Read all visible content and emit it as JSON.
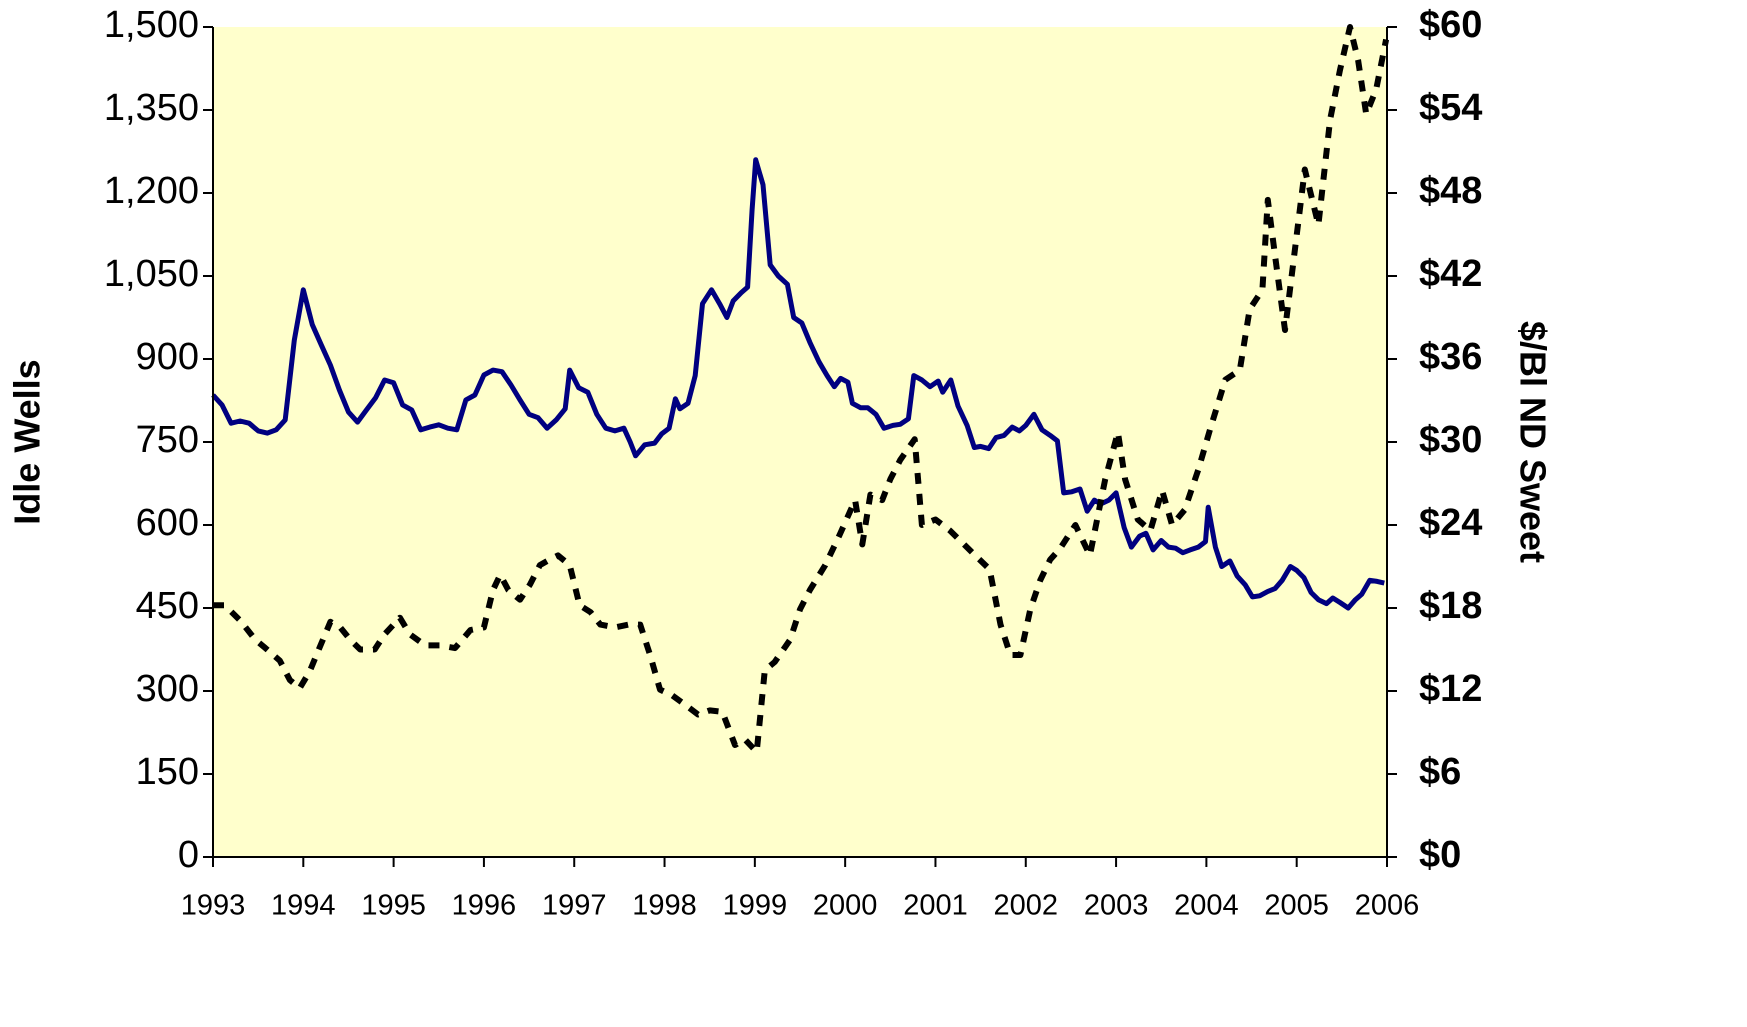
{
  "chart_data": {
    "type": "line",
    "ylabel": "Idle Wells",
    "y2label": "$/Bl ND Sweet",
    "background": "#ffffcc",
    "xlim": [
      1993,
      2006
    ],
    "xticks": [
      1993,
      1994,
      1995,
      1996,
      1997,
      1998,
      1999,
      2000,
      2001,
      2002,
      2003,
      2004,
      2005,
      2006
    ],
    "ylim": [
      0,
      1500
    ],
    "yticks": [
      0,
      150,
      300,
      450,
      600,
      750,
      900,
      {
        "value": 1050,
        "label": "1,050"
      },
      {
        "value": 1200,
        "label": "1,200"
      },
      {
        "value": 1350,
        "label": "1,350"
      },
      {
        "value": 1500,
        "label": "1,500"
      }
    ],
    "y2lim": [
      0,
      60
    ],
    "y2ticks": [
      {
        "value": 0,
        "label": "$0"
      },
      {
        "value": 6,
        "label": "$6"
      },
      {
        "value": 12,
        "label": "$12"
      },
      {
        "value": 18,
        "label": "$18"
      },
      {
        "value": 24,
        "label": "$24"
      },
      {
        "value": 30,
        "label": "$30"
      },
      {
        "value": 36,
        "label": "$36"
      },
      {
        "value": 42,
        "label": "$42"
      },
      {
        "value": 48,
        "label": "$48"
      },
      {
        "value": 54,
        "label": "$54"
      },
      {
        "value": 60,
        "label": "$60"
      }
    ],
    "series": [
      {
        "color": "#000080",
        "dash": false,
        "x": [
          1993.0,
          1993.1,
          1993.2,
          1993.3,
          1993.4,
          1993.5,
          1993.6,
          1993.7,
          1993.8,
          1993.9,
          1994.0,
          1994.1,
          1994.2,
          1994.3,
          1994.4,
          1994.5,
          1994.6,
          1994.7,
          1994.8,
          1994.9,
          1995.0,
          1995.1,
          1995.2,
          1995.3,
          1995.4,
          1995.5,
          1995.6,
          1995.7,
          1995.8,
          1995.9,
          1996.0,
          1996.1,
          1996.2,
          1996.3,
          1996.4,
          1996.5,
          1996.6,
          1996.7,
          1996.8,
          1996.9,
          1996.95,
          1997.05,
          1997.15,
          1997.25,
          1997.35,
          1997.45,
          1997.55,
          1997.62,
          1997.68,
          1997.78,
          1997.89,
          1997.97,
          1998.05,
          1998.12,
          1998.17,
          1998.26,
          1998.34,
          1998.42,
          1998.52,
          1998.61,
          1998.69,
          1998.76,
          1998.85,
          1998.92,
          1998.97,
          1999.01,
          1999.09,
          1999.17,
          1999.26,
          1999.36,
          1999.43,
          1999.52,
          1999.61,
          1999.71,
          1999.8,
          1999.88,
          1999.95,
          2000.03,
          2000.08,
          2000.17,
          2000.25,
          2000.34,
          2000.43,
          2000.53,
          2000.61,
          2000.7,
          2000.76,
          2000.85,
          2000.94,
          2001.03,
          2001.08,
          2001.17,
          2001.25,
          2001.35,
          2001.43,
          2001.5,
          2001.59,
          2001.67,
          2001.76,
          2001.85,
          2001.93,
          2002.0,
          2002.09,
          2002.18,
          2002.27,
          2002.35,
          2002.42,
          2002.51,
          2002.6,
          2002.68,
          2002.76,
          2002.83,
          2002.92,
          2003.0,
          2003.09,
          2003.17,
          2003.26,
          2003.33,
          2003.41,
          2003.5,
          2003.58,
          2003.66,
          2003.74,
          2003.82,
          2003.91,
          2003.99,
          2004.02,
          2004.1,
          2004.17,
          2004.26,
          2004.34,
          2004.43,
          2004.51,
          2004.59,
          2004.68,
          2004.76,
          2004.84,
          2004.93,
          2005.0,
          2005.08,
          2005.16,
          2005.24,
          2005.33,
          2005.4,
          2005.48,
          2005.57,
          2005.65,
          2005.72,
          2005.81,
          2005.89,
          2005.97
        ],
        "values": [
          835,
          817,
          784,
          788,
          784,
          770,
          766,
          772,
          790,
          934,
          1025,
          962,
          925,
          889,
          844,
          804,
          786,
          808,
          830,
          862,
          857,
          817,
          808,
          772,
          777,
          781,
          775,
          772,
          826,
          835,
          871,
          880,
          877,
          853,
          826,
          800,
          794,
          775,
          790,
          810,
          880,
          848,
          840,
          800,
          775,
          770,
          775,
          750,
          725,
          745,
          748,
          765,
          775,
          828,
          810,
          820,
          870,
          1000,
          1025,
          1000,
          975,
          1005,
          1020,
          1030,
          1170,
          1260,
          1215,
          1070,
          1050,
          1035,
          975,
          965,
          930,
          895,
          870,
          850,
          865,
          858,
          820,
          812,
          812,
          800,
          775,
          780,
          782,
          792,
          870,
          862,
          850,
          860,
          840,
          862,
          815,
          780,
          740,
          742,
          738,
          758,
          762,
          777,
          770,
          780,
          800,
          772,
          762,
          752,
          658,
          660,
          665,
          625,
          645,
          638,
          645,
          658,
          595,
          560,
          580,
          585,
          555,
          572,
          560,
          558,
          550,
          555,
          560,
          570,
          632,
          560,
          525,
          535,
          508,
          492,
          470,
          472,
          480,
          485,
          500,
          525,
          518,
          505,
          478,
          465,
          458,
          468,
          460,
          450,
          465,
          475,
          500,
          498,
          495
        ]
      },
      {
        "color": "#000000",
        "dash": true,
        "axis": "y2",
        "x": [
          1993.0,
          1993.13,
          1993.3,
          1993.47,
          1993.58,
          1993.74,
          1993.85,
          1993.96,
          1994.07,
          1994.19,
          1994.3,
          1994.41,
          1994.52,
          1994.63,
          1994.79,
          1994.9,
          1995.07,
          1995.18,
          1995.35,
          1995.51,
          1995.68,
          1995.85,
          1996.0,
          1996.1,
          1996.18,
          1996.27,
          1996.4,
          1996.51,
          1996.62,
          1996.73,
          1996.82,
          1996.95,
          1997.06,
          1997.18,
          1997.29,
          1997.45,
          1997.6,
          1997.73,
          1997.84,
          1997.95,
          1998.08,
          1998.23,
          1998.37,
          1998.5,
          1998.64,
          1998.78,
          1998.89,
          1999.02,
          1999.11,
          1999.22,
          1999.39,
          1999.5,
          1999.61,
          1999.78,
          1999.94,
          2000.11,
          2000.19,
          2000.28,
          2000.41,
          2000.5,
          2000.61,
          2000.77,
          2000.85,
          2001.0,
          2001.16,
          2001.27,
          2001.44,
          2001.6,
          2001.72,
          2001.83,
          2001.94,
          2002.05,
          2002.16,
          2002.27,
          2002.38,
          2002.55,
          2002.71,
          2002.88,
          2003.02,
          2003.1,
          2003.24,
          2003.38,
          2003.51,
          2003.62,
          2003.76,
          2003.91,
          2004.04,
          2004.21,
          2004.37,
          2004.48,
          2004.62,
          2004.68,
          2004.76,
          2004.87,
          2004.98,
          2005.09,
          2005.24,
          2005.37,
          2005.48,
          2005.59,
          2005.68,
          2005.77,
          2005.88,
          2005.99
        ],
        "values": [
          18.2,
          18.2,
          17.1,
          15.7,
          15.1,
          14.2,
          12.8,
          12.2,
          13.4,
          15.3,
          17.0,
          16.6,
          15.7,
          15.0,
          15.0,
          16.1,
          17.3,
          16.1,
          15.3,
          15.3,
          15.1,
          16.4,
          16.6,
          19.3,
          20.4,
          19.3,
          18.6,
          19.7,
          21.1,
          21.5,
          21.8,
          21.1,
          18.2,
          17.7,
          16.8,
          16.6,
          16.8,
          16.8,
          14.6,
          12.1,
          11.7,
          11.0,
          10.3,
          10.6,
          10.5,
          8.1,
          8.5,
          7.6,
          13.5,
          14.1,
          15.7,
          17.9,
          19.3,
          21.1,
          23.3,
          25.8,
          22.6,
          26.2,
          25.8,
          27.3,
          28.7,
          30.2,
          24.0,
          24.4,
          23.6,
          22.9,
          21.8,
          20.8,
          16.8,
          14.6,
          14.6,
          17.9,
          20.0,
          21.5,
          22.3,
          24.0,
          21.8,
          27.3,
          30.7,
          27.3,
          24.4,
          23.6,
          26.5,
          24.0,
          25.1,
          28.0,
          30.9,
          34.5,
          35.2,
          39.6,
          41.0,
          47.5,
          43.5,
          38.1,
          43.9,
          49.7,
          45.7,
          53.3,
          56.9,
          60.0,
          57.6,
          53.7,
          55.5,
          59.1
        ]
      }
    ]
  }
}
